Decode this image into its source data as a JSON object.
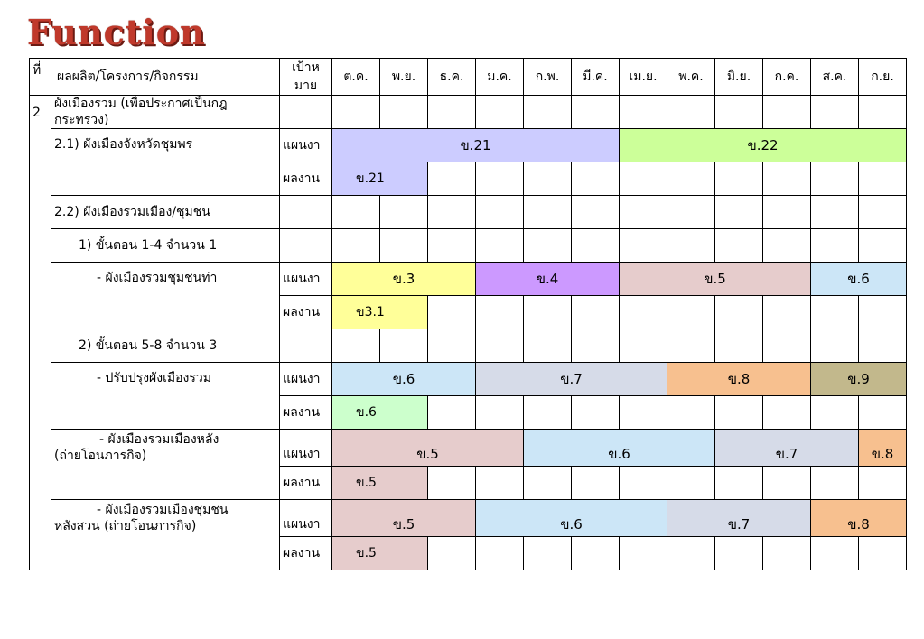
{
  "title": "Function",
  "header": {
    "no": "ที่",
    "activity": "ผลผลิต/โครงการ/กิจกรรม",
    "target_line1": "เป้าห",
    "target_line2": "มาย",
    "months": [
      "ต.ค.",
      "พ.ย.",
      "ธ.ค.",
      "ม.ค.",
      "ก.พ.",
      "มี.ค.",
      "เม.ย.",
      "พ.ค.",
      "มิ.ย.",
      "ก.ค.",
      "ส.ค.",
      "ก.ย."
    ]
  },
  "section": {
    "no": "2",
    "title": "ผังเมืองรวม (เพื่อประกาศเป็นกฎกระทรวง)"
  },
  "rows": {
    "r21_label": "2.1) ผังเมืองจังหวัดชุมพร",
    "r21_plan": "แผนงา",
    "r21_plan_bar1": "ข.21",
    "r21_plan_bar2": "ข.22",
    "r21_result": "ผลงาน",
    "r21_result_bar": "ข.21",
    "r22_label": "2.2) ผังเมืองรวมเมือง/ชุมชน",
    "step1_label": "1) ขั้นตอน 1-4 จำนวน   1",
    "tha_label": "- ผังเมืองรวมชุมชนท่า",
    "tha_plan": "แผนงา",
    "tha_bar1": "ข.3",
    "tha_bar2": "ข.4",
    "tha_bar3": "ข.5",
    "tha_bar4": "ข.6",
    "tha_result": "ผลงาน",
    "tha_result_bar": "ข3.1",
    "step2_label": "2) ขั้นตอน 5-8 จำนวน  3",
    "imp_label": "- ปรับปรุงผังเมืองรวม",
    "imp_plan": "แผนงา",
    "imp_bar1": "ข.6",
    "imp_bar2": "ข.7",
    "imp_bar3": "ข.8",
    "imp_bar4": "ข.9",
    "imp_result": "ผลงาน",
    "imp_result_bar": "ข.6",
    "lang_label1": "- ผังเมืองรวมเมืองหลัง",
    "lang_label2": "(ถ่ายโอนภารกิจ)",
    "lang_plan": "แผนงา",
    "lang_bar1": "ข.5",
    "lang_bar2": "ข.6",
    "lang_bar3": "ข.7",
    "lang_bar4": "ข.8",
    "lang_result": "ผลงาน",
    "lang_result_bar": "ข.5",
    "suan_label1": "- ผังเมืองรวมเมืองชุมชน",
    "suan_label2": "หลังสวน (ถ่ายโอนภารกิจ)",
    "suan_plan": "แผนงา",
    "suan_bar1": "ข.5",
    "suan_bar2": "ข.6",
    "suan_bar3": "ข.7",
    "suan_bar4": "ข.8",
    "suan_result": "ผลงาน",
    "suan_result_bar": "ข.5"
  },
  "colors": {
    "title": "#c0392b",
    "lavender": "#ccccff",
    "green": "#ccff99",
    "yellow": "#ffff99",
    "purple": "#cc99ff",
    "pink": "#e6cccc",
    "sky": "#cce6f7",
    "grey_blue": "#d6dbe8",
    "orange": "#f7c08f",
    "khaki": "#c2b88c",
    "mint": "#ccffcc"
  }
}
